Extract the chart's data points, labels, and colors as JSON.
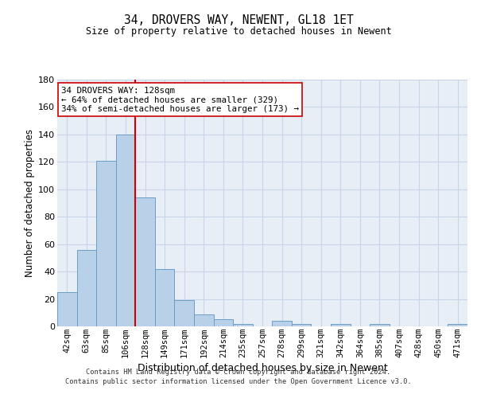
{
  "title1": "34, DROVERS WAY, NEWENT, GL18 1ET",
  "title2": "Size of property relative to detached houses in Newent",
  "xlabel": "Distribution of detached houses by size in Newent",
  "ylabel": "Number of detached properties",
  "bar_labels": [
    "42sqm",
    "63sqm",
    "85sqm",
    "106sqm",
    "128sqm",
    "149sqm",
    "171sqm",
    "192sqm",
    "214sqm",
    "235sqm",
    "257sqm",
    "278sqm",
    "299sqm",
    "321sqm",
    "342sqm",
    "364sqm",
    "385sqm",
    "407sqm",
    "428sqm",
    "450sqm",
    "471sqm"
  ],
  "bar_values": [
    25,
    56,
    121,
    140,
    94,
    42,
    19,
    9,
    5,
    2,
    0,
    4,
    2,
    0,
    2,
    0,
    2,
    0,
    0,
    0,
    2
  ],
  "bar_color": "#b8d0e8",
  "bar_edge_color": "#6a9fc8",
  "vline_color": "#cc0000",
  "annotation_line1": "34 DROVERS WAY: 128sqm",
  "annotation_line2": "← 64% of detached houses are smaller (329)",
  "annotation_line3": "34% of semi-detached houses are larger (173) →",
  "annotation_box_color": "#ffffff",
  "annotation_box_edge": "#cc0000",
  "ylim": [
    0,
    180
  ],
  "yticks": [
    0,
    20,
    40,
    60,
    80,
    100,
    120,
    140,
    160,
    180
  ],
  "grid_color": "#c8d4e8",
  "background_color": "#e8eef6",
  "footer1": "Contains HM Land Registry data © Crown copyright and database right 2024.",
  "footer2": "Contains public sector information licensed under the Open Government Licence v3.0."
}
